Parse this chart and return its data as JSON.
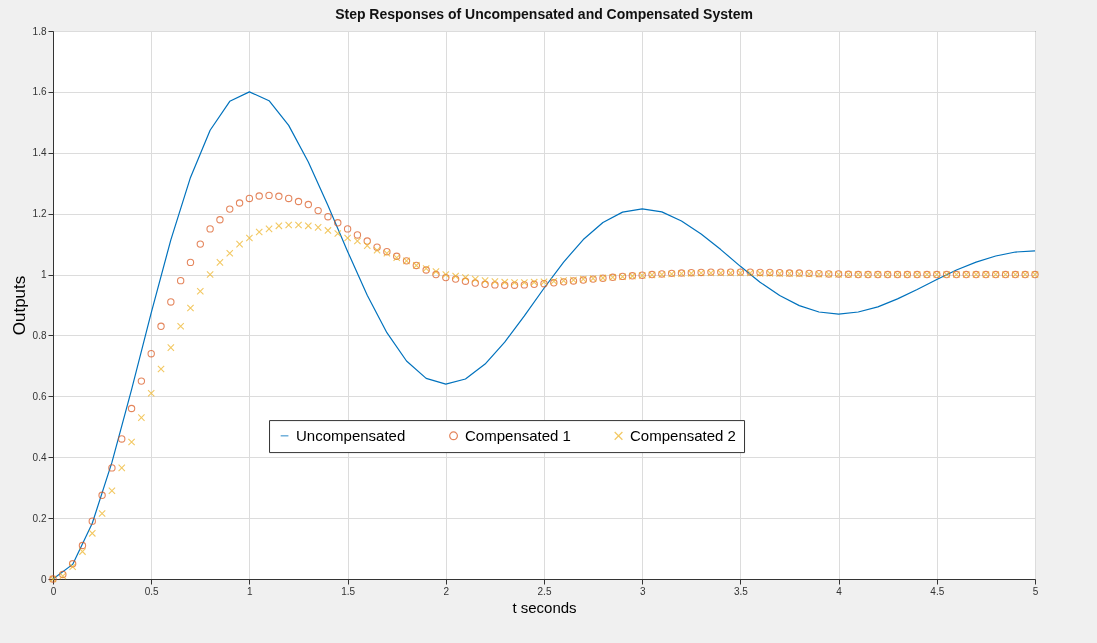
{
  "chart_data": {
    "type": "line",
    "title": "Step Responses of Uncompensated and Compensated System",
    "xlabel": "t seconds",
    "ylabel": "Outputs",
    "xlim": [
      0,
      5
    ],
    "ylim": [
      0,
      1.8
    ],
    "xticks": [
      0,
      0.5,
      1,
      1.5,
      2,
      2.5,
      3,
      3.5,
      4,
      4.5,
      5
    ],
    "yticks": [
      0,
      0.2,
      0.4,
      0.6,
      0.8,
      1,
      1.2,
      1.4,
      1.6,
      1.8
    ],
    "grid": true,
    "legend": "bottom",
    "series": [
      {
        "name": "Uncompensated",
        "marker": "none",
        "color": "#0072bd",
        "x": [
          0,
          0.1,
          0.2,
          0.3,
          0.4,
          0.5,
          0.6,
          0.7,
          0.8,
          0.9,
          1,
          1.1,
          1.2,
          1.3,
          1.4,
          1.5,
          1.6,
          1.7,
          1.8,
          1.9,
          2,
          2.1,
          2.2,
          2.3,
          2.4,
          2.5,
          2.6,
          2.7,
          2.8,
          2.9,
          3,
          3.1,
          3.2,
          3.3,
          3.4,
          3.5,
          3.6,
          3.7,
          3.8,
          3.9,
          4,
          4.1,
          4.2,
          4.3,
          4.4,
          4.5,
          4.6,
          4.7,
          4.8,
          4.9,
          5
        ],
        "values": [
          0,
          0.048,
          0.183,
          0.383,
          0.622,
          0.874,
          1.114,
          1.319,
          1.474,
          1.569,
          1.6,
          1.571,
          1.49,
          1.37,
          1.227,
          1.076,
          0.932,
          0.809,
          0.716,
          0.659,
          0.64,
          0.657,
          0.706,
          0.778,
          0.864,
          0.955,
          1.041,
          1.115,
          1.171,
          1.205,
          1.216,
          1.206,
          1.176,
          1.133,
          1.082,
          1.027,
          0.975,
          0.931,
          0.898,
          0.877,
          0.87,
          0.877,
          0.894,
          0.92,
          0.951,
          0.984,
          1.015,
          1.041,
          1.061,
          1.074,
          1.078
        ]
      },
      {
        "name": "Compensated 1",
        "type": "scatter",
        "marker": "circle",
        "color": "#d95319",
        "x": [
          0,
          0.05,
          0.1,
          0.15,
          0.2,
          0.25,
          0.3,
          0.35,
          0.4,
          0.45,
          0.5,
          0.55,
          0.6,
          0.65,
          0.7,
          0.75,
          0.8,
          0.85,
          0.9,
          0.95,
          1,
          1.05,
          1.1,
          1.15,
          1.2,
          1.25,
          1.3,
          1.35,
          1.4,
          1.45,
          1.5,
          1.55,
          1.6,
          1.65,
          1.7,
          1.75,
          1.8,
          1.85,
          1.9,
          1.95,
          2,
          2.05,
          2.1,
          2.15,
          2.2,
          2.25,
          2.3,
          2.35,
          2.4,
          2.45,
          2.5,
          2.55,
          2.6,
          2.65,
          2.7,
          2.75,
          2.8,
          2.85,
          2.9,
          2.95,
          3,
          3.05,
          3.1,
          3.15,
          3.2,
          3.25,
          3.3,
          3.35,
          3.4,
          3.45,
          3.5,
          3.55,
          3.6,
          3.65,
          3.7,
          3.75,
          3.8,
          3.85,
          3.9,
          3.95,
          4,
          4.05,
          4.1,
          4.15,
          4.2,
          4.25,
          4.3,
          4.35,
          4.4,
          4.45,
          4.5,
          4.55,
          4.6,
          4.65,
          4.7,
          4.75,
          4.8,
          4.85,
          4.9,
          4.95,
          5
        ],
        "values": [
          0,
          0.015,
          0.05,
          0.11,
          0.19,
          0.275,
          0.365,
          0.46,
          0.56,
          0.65,
          0.74,
          0.83,
          0.91,
          0.98,
          1.04,
          1.1,
          1.15,
          1.18,
          1.215,
          1.235,
          1.25,
          1.258,
          1.26,
          1.257,
          1.25,
          1.24,
          1.23,
          1.21,
          1.19,
          1.17,
          1.15,
          1.13,
          1.11,
          1.09,
          1.075,
          1.06,
          1.045,
          1.03,
          1.015,
          1,
          0.99,
          0.985,
          0.978,
          0.972,
          0.968,
          0.966,
          0.965,
          0.965,
          0.966,
          0.968,
          0.97,
          0.973,
          0.976,
          0.979,
          0.982,
          0.985,
          0.988,
          0.991,
          0.994,
          0.996,
          0.998,
          1,
          1.002,
          1.004,
          1.005,
          1.006,
          1.007,
          1.008,
          1.008,
          1.008,
          1.008,
          1.008,
          1.007,
          1.007,
          1.006,
          1.005,
          1.005,
          1.004,
          1.003,
          1.002,
          1.002,
          1.001,
          1,
          1,
          1,
          1,
          1,
          1,
          1,
          1,
          1,
          1,
          1,
          1,
          1,
          1,
          1,
          1,
          1,
          1,
          1
        ]
      },
      {
        "name": "Compensated 2",
        "type": "scatter",
        "marker": "cross",
        "color": "#edb120",
        "x": [
          0,
          0.05,
          0.1,
          0.15,
          0.2,
          0.25,
          0.3,
          0.35,
          0.4,
          0.45,
          0.5,
          0.55,
          0.6,
          0.65,
          0.7,
          0.75,
          0.8,
          0.85,
          0.9,
          0.95,
          1,
          1.05,
          1.1,
          1.15,
          1.2,
          1.25,
          1.3,
          1.35,
          1.4,
          1.45,
          1.5,
          1.55,
          1.6,
          1.65,
          1.7,
          1.75,
          1.8,
          1.85,
          1.9,
          1.95,
          2,
          2.05,
          2.1,
          2.15,
          2.2,
          2.25,
          2.3,
          2.35,
          2.4,
          2.45,
          2.5,
          2.55,
          2.6,
          2.65,
          2.7,
          2.75,
          2.8,
          2.85,
          2.9,
          2.95,
          3,
          3.05,
          3.1,
          3.15,
          3.2,
          3.25,
          3.3,
          3.35,
          3.4,
          3.45,
          3.5,
          3.55,
          3.6,
          3.65,
          3.7,
          3.75,
          3.8,
          3.85,
          3.9,
          3.95,
          4,
          4.05,
          4.1,
          4.15,
          4.2,
          4.25,
          4.3,
          4.35,
          4.4,
          4.45,
          4.5,
          4.55,
          4.6,
          4.65,
          4.7,
          4.75,
          4.8,
          4.85,
          4.9,
          4.95,
          5
        ],
        "values": [
          0,
          0.01,
          0.04,
          0.09,
          0.15,
          0.215,
          0.29,
          0.365,
          0.45,
          0.53,
          0.61,
          0.69,
          0.76,
          0.83,
          0.89,
          0.945,
          1,
          1.04,
          1.07,
          1.1,
          1.12,
          1.14,
          1.15,
          1.16,
          1.163,
          1.163,
          1.16,
          1.155,
          1.145,
          1.135,
          1.12,
          1.11,
          1.095,
          1.08,
          1.07,
          1.055,
          1.045,
          1.03,
          1.02,
          1.01,
          1,
          0.995,
          0.99,
          0.985,
          0.98,
          0.977,
          0.975,
          0.974,
          0.974,
          0.975,
          0.976,
          0.978,
          0.98,
          0.982,
          0.985,
          0.987,
          0.989,
          0.991,
          0.993,
          0.995,
          0.997,
          0.999,
          1,
          1.002,
          1.003,
          1.004,
          1.005,
          1.005,
          1.005,
          1.005,
          1.005,
          1.005,
          1.004,
          1.004,
          1.003,
          1.003,
          1.002,
          1.002,
          1.001,
          1.001,
          1,
          1,
          1,
          1,
          1,
          1,
          1,
          1,
          1,
          1,
          1,
          1,
          1,
          1,
          1,
          1,
          1,
          1,
          1,
          1,
          1
        ]
      }
    ]
  }
}
